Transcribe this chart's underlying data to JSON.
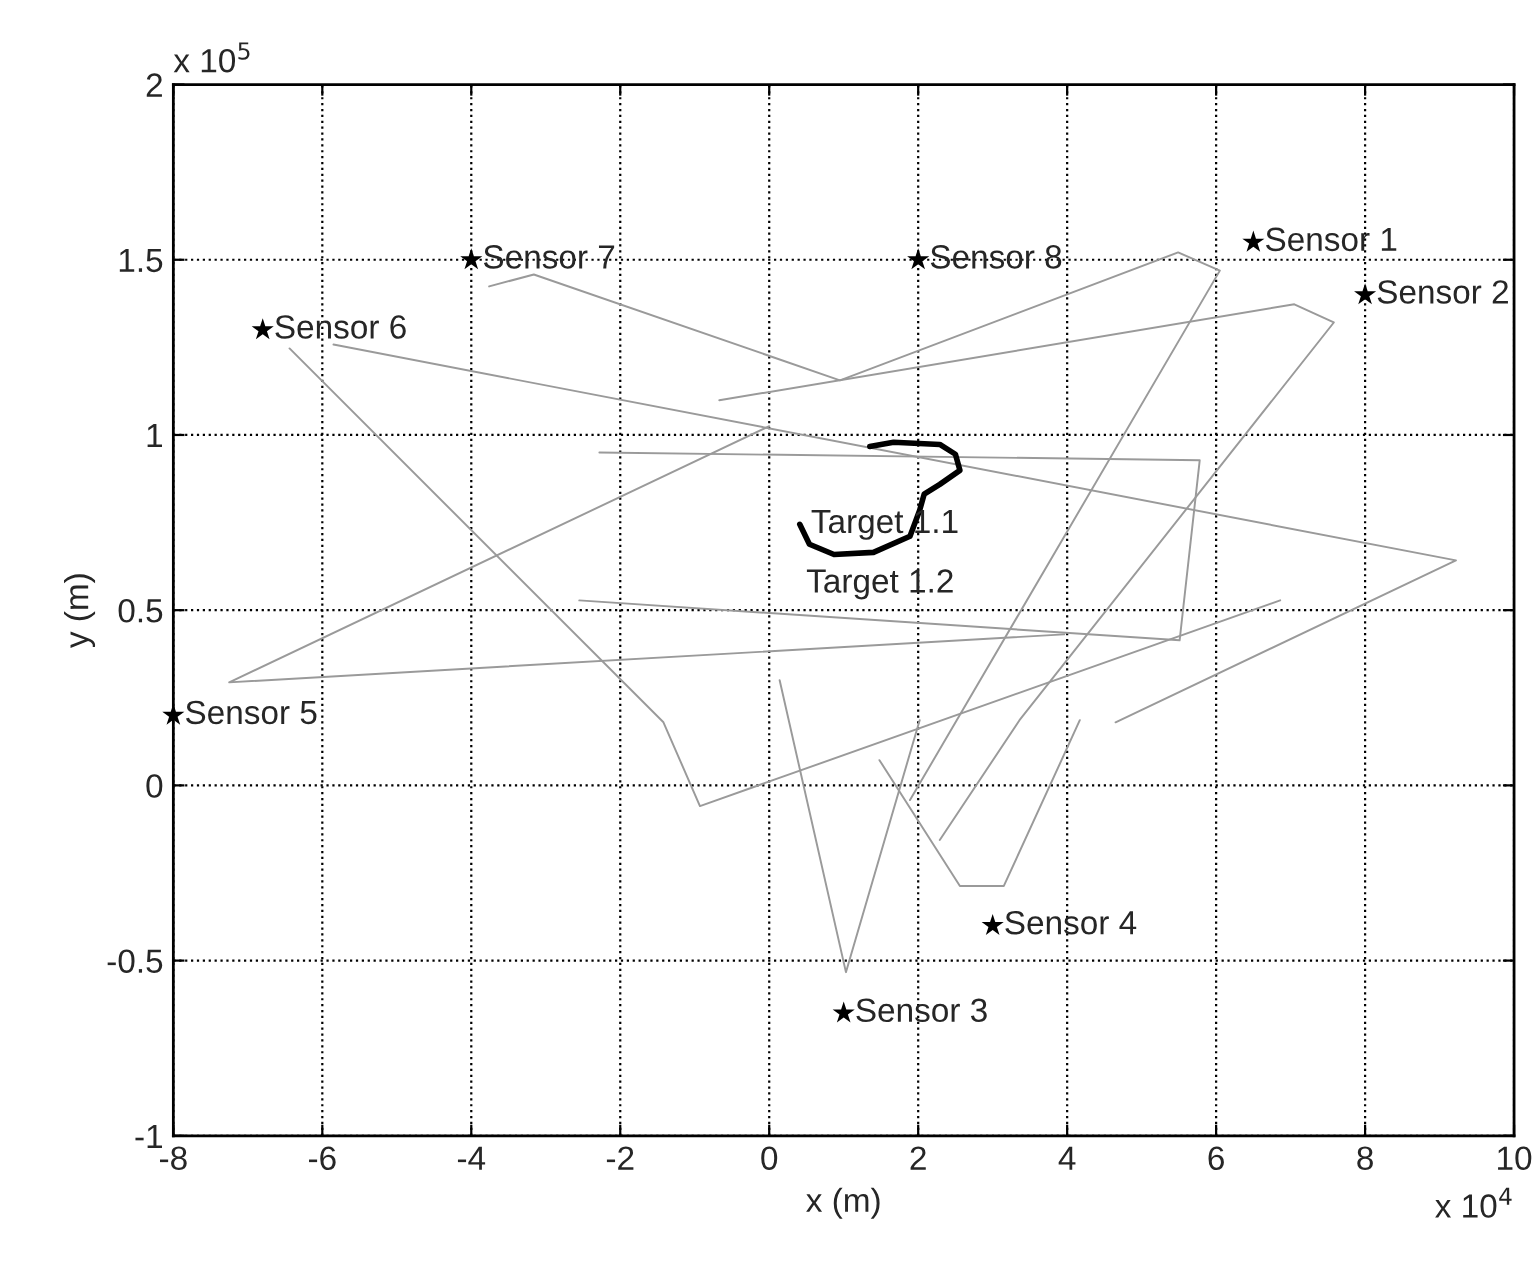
{
  "chart_data": {
    "type": "line",
    "xlabel": "x (m)",
    "ylabel": "y (m)",
    "grid": true,
    "xlim": [
      -8,
      10
    ],
    "ylim": [
      -1,
      2
    ],
    "xticks": [
      -8,
      -6,
      -4,
      -2,
      0,
      2,
      4,
      6,
      8,
      10
    ],
    "yticks": [
      -1,
      -0.5,
      0,
      0.5,
      1,
      1.5,
      2
    ],
    "series": [
      {
        "color": "#9a9a9a",
        "x": [
          0,
          -7.25,
          3.96
        ],
        "values": [
          1.025,
          0.294,
          0.431
        ]
      },
      {
        "color": "#9a9a9a",
        "x": [
          -6.44,
          -1.42,
          -0.93,
          6.86
        ],
        "values": [
          1.247,
          0.18,
          -0.059,
          0.528
        ]
      },
      {
        "color": "#9a9a9a",
        "x": [
          -5.85,
          9.22,
          4.65
        ],
        "values": [
          1.258,
          0.642,
          0.18
        ]
      },
      {
        "color": "#9a9a9a",
        "x": [
          -3.76,
          -3.16,
          0.95,
          5.49,
          6.05,
          1.89
        ],
        "values": [
          1.424,
          1.458,
          1.156,
          1.521,
          1.469,
          -0.042
        ]
      },
      {
        "color": "#9a9a9a",
        "x": [
          -0.67,
          7.05,
          7.58,
          3.36,
          2.29
        ],
        "values": [
          1.099,
          1.373,
          1.321,
          0.186,
          -0.156
        ]
      },
      {
        "color": "#9a9a9a",
        "x": [
          0.14,
          1.03,
          2.02
        ],
        "values": [
          0.3,
          -0.533,
          0.186
        ]
      },
      {
        "color": "#9a9a9a",
        "x": [
          1.48,
          2.56,
          3.15,
          4.17
        ],
        "values": [
          0.072,
          -0.287,
          -0.287,
          0.186
        ]
      },
      {
        "color": "#9a9a9a",
        "x": [
          -2.28,
          5.78,
          5.51,
          -2.55
        ],
        "values": [
          0.95,
          0.928,
          0.414,
          0.528
        ]
      },
      {
        "color": "#000000",
        "x": [
          0.41,
          0.54,
          0.87,
          1.4,
          1.89,
          2.02,
          2.08,
          2.29,
          2.56,
          2.5,
          2.29,
          1.67,
          1.35
        ],
        "values": [
          0.745,
          0.688,
          0.659,
          0.665,
          0.711,
          0.785,
          0.831,
          0.859,
          0.899,
          0.945,
          0.973,
          0.979,
          0.967
        ]
      },
      {
        "type": "scatter",
        "color": "#000000",
        "marker": "star",
        "x": [
          6.5,
          8,
          1,
          3,
          -8,
          -6.8,
          -4,
          2
        ],
        "values": [
          1.55,
          1.4,
          -0.65,
          -0.4,
          0.2,
          1.3,
          1.5,
          1.5
        ]
      }
    ],
    "annotations": [
      {
        "text": "Sensor 1",
        "x": 6.5,
        "y": 1.55
      },
      {
        "text": "Sensor 2",
        "x": 8,
        "y": 1.4
      },
      {
        "text": "Sensor 3",
        "x": 1,
        "y": -0.65
      },
      {
        "text": "Sensor 4",
        "x": 3,
        "y": -0.4
      },
      {
        "text": "Sensor 5",
        "x": -8,
        "y": 0.2
      },
      {
        "text": "Sensor 6",
        "x": -6.8,
        "y": 1.3
      },
      {
        "text": "Sensor 7",
        "x": -4,
        "y": 1.5
      },
      {
        "text": "Sensor 8",
        "x": 2,
        "y": 1.5
      },
      {
        "text": "Target 1.1",
        "x": 0.41,
        "y": 0.745
      },
      "Target 1.2",
      "x 10$^{5}$",
      "x 10$^{4}$"
    ]
  }
}
